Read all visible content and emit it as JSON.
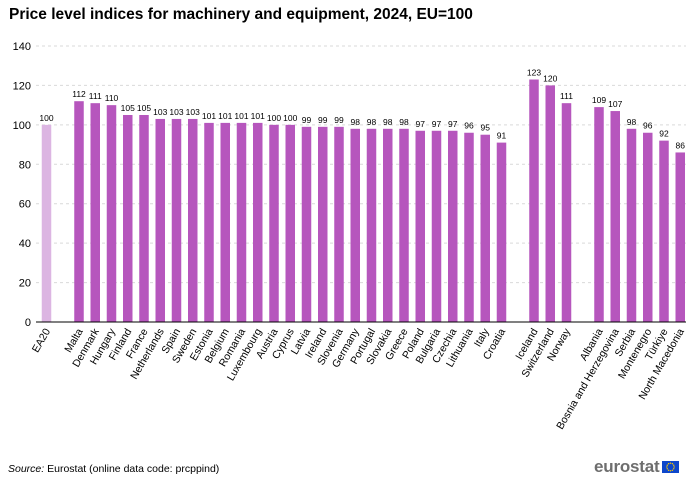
{
  "title": "Price level indices for machinery and equipment, 2024, EU=100",
  "source": {
    "label": "Source:",
    "text": " Eurostat (online data code: prcppind)"
  },
  "logo": {
    "text": "eurostat"
  },
  "colors": {
    "main": "#b656bd",
    "reference": "#dcb5e2",
    "grid": "#d9d9d9",
    "axis": "#000000"
  },
  "chart_data": {
    "type": "bar",
    "title": "Price level indices for machinery and equipment, 2024, EU=100",
    "xlabel": "",
    "ylabel": "",
    "ylim": [
      0,
      140
    ],
    "yticks": [
      0,
      20,
      40,
      60,
      80,
      100,
      120,
      140
    ],
    "grid": true,
    "groups": [
      {
        "categories": [
          "EA20"
        ],
        "values": [
          100
        ],
        "highlight": true
      },
      {
        "categories": [
          "Malta",
          "Denmark",
          "Hungary",
          "Finland",
          "France",
          "Netherlands",
          "Spain",
          "Sweden",
          "Estonia",
          "Belgium",
          "Romania",
          "Luxembourg",
          "Austria",
          "Cyprus",
          "Latvia",
          "Ireland",
          "Slovenia",
          "Germany",
          "Portugal",
          "Slovakia",
          "Greece",
          "Poland",
          "Bulgaria",
          "Czechia",
          "Lithuania",
          "Italy",
          "Croatia"
        ],
        "values": [
          112,
          111,
          110,
          105,
          105,
          103,
          103,
          103,
          101,
          101,
          101,
          101,
          100,
          100,
          99,
          99,
          99,
          98,
          98,
          98,
          98,
          97,
          97,
          97,
          96,
          95,
          91
        ]
      },
      {
        "categories": [
          "Iceland",
          "Switzerland",
          "Norway"
        ],
        "values": [
          123,
          120,
          111
        ]
      },
      {
        "categories": [
          "Albania",
          "Bosnia and Herzegovina",
          "Serbia",
          "Montenegro",
          "Türkiye",
          "North Macedonia"
        ],
        "values": [
          109,
          107,
          98,
          96,
          92,
          86
        ]
      }
    ]
  }
}
